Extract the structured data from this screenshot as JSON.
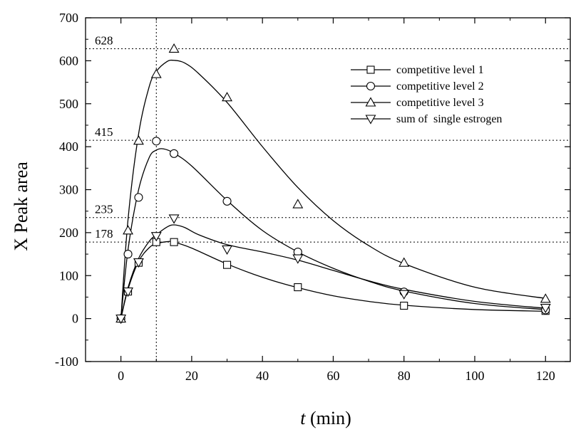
{
  "chart_data": {
    "type": "line",
    "xlabel_italic": "t",
    "xlabel_rest": " (min)",
    "ylabel": "X Peak area",
    "xlim": [
      -10,
      127
    ],
    "ylim": [
      -100,
      700
    ],
    "xticks": [
      0,
      20,
      40,
      60,
      80,
      100,
      120
    ],
    "yticks": [
      -100,
      0,
      100,
      200,
      300,
      400,
      500,
      600,
      700
    ],
    "grid": false,
    "legend_position": "top-right",
    "vertical_reference_line_x": 10,
    "reference_lines": [
      {
        "y": 628,
        "label": "628"
      },
      {
        "y": 415,
        "label": "415"
      },
      {
        "y": 235,
        "label": "235"
      },
      {
        "y": 178,
        "label": "178"
      }
    ],
    "series": [
      {
        "name": "competitive level 1",
        "marker": "square",
        "points": [
          [
            0,
            0
          ],
          [
            2,
            63
          ],
          [
            5,
            130
          ],
          [
            10,
            178
          ],
          [
            15,
            178
          ],
          [
            30,
            125
          ],
          [
            50,
            73
          ],
          [
            80,
            30
          ],
          [
            120,
            18
          ]
        ],
        "curve": [
          [
            0,
            0
          ],
          [
            2,
            68
          ],
          [
            5,
            133
          ],
          [
            8,
            165
          ],
          [
            10,
            174
          ],
          [
            13,
            179
          ],
          [
            15,
            178
          ],
          [
            20,
            164
          ],
          [
            30,
            127
          ],
          [
            40,
            96
          ],
          [
            50,
            72
          ],
          [
            60,
            53
          ],
          [
            70,
            40
          ],
          [
            80,
            31
          ],
          [
            100,
            21
          ],
          [
            120,
            17
          ]
        ]
      },
      {
        "name": "competitive level 2",
        "marker": "circle",
        "points": [
          [
            0,
            0
          ],
          [
            2,
            150
          ],
          [
            5,
            282
          ],
          [
            10,
            413
          ],
          [
            15,
            384
          ],
          [
            30,
            273
          ],
          [
            50,
            155
          ],
          [
            80,
            62
          ],
          [
            120,
            20
          ]
        ],
        "curve": [
          [
            0,
            0
          ],
          [
            2,
            160
          ],
          [
            5,
            300
          ],
          [
            8,
            375
          ],
          [
            10,
            392
          ],
          [
            12,
            395
          ],
          [
            15,
            385
          ],
          [
            20,
            355
          ],
          [
            30,
            275
          ],
          [
            40,
            205
          ],
          [
            50,
            155
          ],
          [
            60,
            117
          ],
          [
            70,
            87
          ],
          [
            80,
            64
          ],
          [
            100,
            35
          ],
          [
            120,
            21
          ]
        ]
      },
      {
        "name": "competitive level 3",
        "marker": "triangle-up",
        "points": [
          [
            0,
            0
          ],
          [
            2,
            205
          ],
          [
            5,
            414
          ],
          [
            10,
            569
          ],
          [
            15,
            628
          ],
          [
            30,
            515
          ],
          [
            50,
            266
          ],
          [
            80,
            130
          ],
          [
            120,
            46
          ]
        ],
        "curve": [
          [
            0,
            0
          ],
          [
            2,
            230
          ],
          [
            5,
            430
          ],
          [
            8,
            540
          ],
          [
            10,
            575
          ],
          [
            13,
            598
          ],
          [
            15,
            601
          ],
          [
            18,
            595
          ],
          [
            22,
            570
          ],
          [
            30,
            503
          ],
          [
            40,
            400
          ],
          [
            50,
            305
          ],
          [
            60,
            228
          ],
          [
            70,
            170
          ],
          [
            80,
            128
          ],
          [
            100,
            73
          ],
          [
            120,
            47
          ]
        ]
      },
      {
        "name": "sum of  single estrogen",
        "marker": "triangle-down",
        "points": [
          [
            0,
            0
          ],
          [
            2,
            63
          ],
          [
            5,
            131
          ],
          [
            10,
            192
          ],
          [
            15,
            233
          ],
          [
            30,
            161
          ],
          [
            50,
            140
          ],
          [
            80,
            57
          ],
          [
            120,
            25
          ]
        ],
        "curve": [
          [
            0,
            0
          ],
          [
            2,
            72
          ],
          [
            5,
            140
          ],
          [
            8,
            180
          ],
          [
            10,
            195
          ],
          [
            13,
            213
          ],
          [
            15,
            218
          ],
          [
            18,
            212
          ],
          [
            22,
            195
          ],
          [
            30,
            172
          ],
          [
            40,
            155
          ],
          [
            50,
            136
          ],
          [
            60,
            112
          ],
          [
            70,
            88
          ],
          [
            80,
            68
          ],
          [
            100,
            40
          ],
          [
            120,
            24
          ]
        ]
      }
    ]
  }
}
